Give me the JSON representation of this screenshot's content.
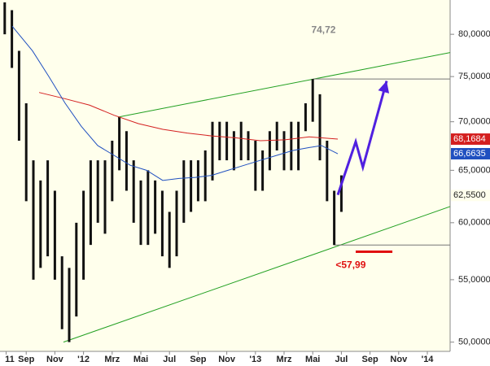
{
  "chart_data": {
    "type": "range-bar",
    "log_scale": true,
    "xlim": [
      0.17,
      31.59
    ],
    "ylim": [
      49.3,
      84.3
    ],
    "xticks": [
      {
        "value": 0.6,
        "label": "11"
      },
      {
        "value": 2,
        "label": "Sep"
      },
      {
        "value": 4,
        "label": "Nov"
      },
      {
        "value": 6,
        "label": "'12"
      },
      {
        "value": 8,
        "label": "Mrz"
      },
      {
        "value": 10,
        "label": "Mai"
      },
      {
        "value": 12,
        "label": "Jul"
      },
      {
        "value": 14,
        "label": "Sep"
      },
      {
        "value": 16,
        "label": "Nov"
      },
      {
        "value": 18,
        "label": "'13"
      },
      {
        "value": 20,
        "label": "Mrz"
      },
      {
        "value": 22,
        "label": "Mai"
      },
      {
        "value": 24,
        "label": "Jul"
      },
      {
        "value": 26,
        "label": "Sep"
      },
      {
        "value": 28,
        "label": "Nov"
      },
      {
        "value": 30,
        "label": "'14"
      }
    ],
    "yticks": [
      {
        "value": 50,
        "label": "50,0000"
      },
      {
        "value": 55,
        "label": "55,0000"
      },
      {
        "value": 60,
        "label": "60,0000"
      },
      {
        "value": 65,
        "label": "65,0000"
      },
      {
        "value": 70,
        "label": "70,0000"
      },
      {
        "value": 75,
        "label": "75,0000"
      },
      {
        "value": 80,
        "label": "80,0000"
      }
    ],
    "bar_color": "#111111",
    "x": [
      0.5,
      1,
      1.5,
      2,
      2.5,
      3,
      3.5,
      4,
      4.5,
      5,
      5.5,
      6,
      6.5,
      7,
      7.5,
      8,
      8.5,
      9,
      9.5,
      10,
      10.5,
      11,
      11.5,
      12,
      12.5,
      13,
      13.5,
      14,
      14.5,
      15,
      15.5,
      16,
      16.5,
      17,
      17.5,
      18,
      18.5,
      19,
      19.5,
      20,
      20.5,
      21,
      21.5,
      22,
      22.5,
      23,
      23.5,
      24
    ],
    "high": [
      84,
      83,
      78,
      72,
      66,
      64,
      66,
      63,
      57,
      56,
      60,
      63,
      66,
      66,
      66,
      68,
      70.5,
      69,
      66,
      64,
      65,
      64,
      63,
      61,
      63,
      66,
      66,
      66,
      67,
      70,
      70,
      70,
      69,
      70,
      69,
      68,
      67,
      69,
      70,
      69,
      70,
      70,
      72,
      74.72,
      73,
      68,
      63,
      64.5
    ],
    "low": [
      80,
      76,
      68,
      62,
      55,
      56,
      57,
      55,
      51,
      50,
      52,
      55,
      58,
      60,
      59,
      62,
      65,
      63,
      60,
      58,
      58,
      59,
      57,
      56,
      57,
      60,
      61,
      62,
      62,
      64,
      66,
      66,
      65,
      66,
      66,
      63,
      63,
      65,
      67,
      65,
      65,
      65,
      69,
      70,
      66,
      62,
      57.99,
      61
    ],
    "close": {
      "value": 62.55,
      "label": "62,5500"
    },
    "moving_averages": [
      {
        "color": "#d42020",
        "x": [
          2.9,
          4.72,
          6.42,
          8.13,
          9.83,
          11.53,
          13.24,
          14.94,
          16.65,
          18.35,
          20.06,
          21.76,
          23.75
        ],
        "values": [
          73.2,
          72.5,
          71.8,
          70.7,
          69.8,
          69.2,
          68.8,
          68.5,
          68.3,
          68.0,
          68.1,
          68.4,
          68.1684
        ],
        "last_label": "68,1684"
      },
      {
        "color": "#2050c0",
        "x": [
          1.02,
          2.44,
          3.58,
          4.72,
          5.85,
          6.99,
          8.13,
          9.26,
          10.4,
          11.53,
          12.67,
          13.81,
          14.94,
          16.08,
          17.22,
          18.35,
          19.49,
          20.62,
          21.76,
          22.61,
          23.75
        ],
        "values": [
          81,
          78,
          75,
          72,
          69.5,
          67.5,
          66.5,
          65.5,
          65,
          64,
          64.2,
          64.3,
          64.5,
          65,
          65.5,
          66,
          66.5,
          67,
          67.3,
          67.5,
          66.6635
        ],
        "last_label": "66,6635"
      }
    ],
    "trendlines": [
      {
        "color": "#22a022",
        "x": [
          8.41,
          31.59
        ],
        "values": [
          70.5,
          77.8
        ]
      },
      {
        "color": "#22a022",
        "x": [
          4.6,
          31.59
        ],
        "values": [
          50,
          61.5
        ]
      },
      {
        "color": "#777777",
        "x": [
          22.05,
          31.59
        ],
        "values": [
          74.72,
          74.72
        ]
      },
      {
        "color": "#777777",
        "x": [
          23.5,
          31.59
        ],
        "values": [
          57.99,
          57.99
        ]
      },
      {
        "color": "#e01010",
        "x": [
          25,
          27.56
        ],
        "values": [
          57.4,
          57.4
        ]
      }
    ],
    "forecast": {
      "color": "#5020e0",
      "x": [
        23.75,
        25,
        25.5,
        27.16
      ],
      "values": [
        62.6,
        67.9,
        65.3,
        74.5
      ]
    },
    "annotations": [
      {
        "label": "74,72",
        "x": 21.9,
        "y": 80.5,
        "color": "#888888"
      },
      {
        "label": "<57,99",
        "x": 23.6,
        "y": 56.2,
        "color": "#e01010"
      }
    ]
  }
}
